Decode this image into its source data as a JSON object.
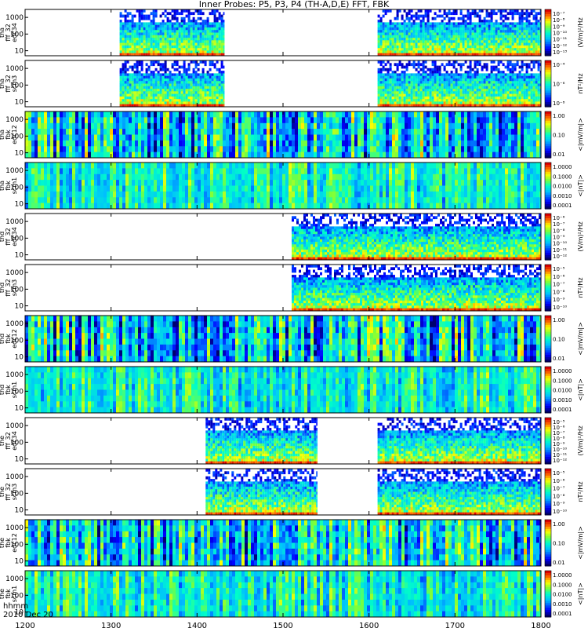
{
  "title": "Inner Probes: P5, P3, P4 (TH-A,D,E) FFT, FBK",
  "footer": {
    "time_label": "hhmm",
    "date_label": "2010 Dec 20"
  },
  "xaxis": {
    "ticks": [
      "1200",
      "1300",
      "1400",
      "1500",
      "1600",
      "1700",
      "1800"
    ],
    "range": [
      1200,
      1800
    ]
  },
  "chart_data": [
    {
      "type": "heatmap",
      "ylabel": [
        "tha",
        "fff_32",
        "edc34"
      ],
      "yticks": [
        "10",
        "100",
        "1000"
      ],
      "yscale": "log",
      "colorbar_label": "(V/m)²/Hz",
      "colorbar_ticks": [
        "10⁻⁷",
        "10⁻⁸",
        "10⁻⁹",
        "10⁻¹⁰",
        "10⁻¹¹",
        "10⁻¹²",
        "10⁻¹³"
      ],
      "data_intervals": [
        [
          1310,
          1432
        ],
        [
          1610,
          1800
        ]
      ],
      "palette": "wave"
    },
    {
      "type": "heatmap",
      "ylabel": [
        "tha",
        "fff_32",
        "scm3"
      ],
      "yticks": [
        "10",
        "100",
        "1000"
      ],
      "yscale": "log",
      "colorbar_label": "nT²/Hz",
      "colorbar_ticks": [
        "10⁻⁴",
        "10⁻⁶",
        "10⁻⁸"
      ],
      "data_intervals": [
        [
          1310,
          1432
        ],
        [
          1610,
          1800
        ]
      ],
      "palette": "wave"
    },
    {
      "type": "heatmap",
      "ylabel": [
        "tha",
        "fbk",
        "edc12"
      ],
      "yticks": [
        "10",
        "100",
        "1000"
      ],
      "yscale": "log",
      "colorbar_label": "<|mV/m|>",
      "colorbar_ticks": [
        "1.00",
        "0.10",
        "0.01"
      ],
      "data_intervals": [
        [
          1200,
          1800
        ]
      ],
      "palette": "fbk"
    },
    {
      "type": "heatmap",
      "ylabel": [
        "tha",
        "fbk",
        "scm1"
      ],
      "yticks": [
        "10",
        "100",
        "1000"
      ],
      "yscale": "log",
      "colorbar_label": "<|nT|>",
      "colorbar_ticks": [
        "1.0000",
        "0.1000",
        "0.0100",
        "0.0010",
        "0.0001"
      ],
      "data_intervals": [
        [
          1200,
          1800
        ]
      ],
      "palette": "scm"
    },
    {
      "type": "heatmap",
      "ylabel": [
        "thd",
        "fff_32",
        "edc34"
      ],
      "yticks": [
        "10",
        "100",
        "1000"
      ],
      "yscale": "log",
      "colorbar_label": "(V/m)²/Hz",
      "colorbar_ticks": [
        "10⁻⁶",
        "10⁻⁷",
        "10⁻⁸",
        "10⁻⁹",
        "10⁻¹⁰",
        "10⁻¹¹",
        "10⁻¹²"
      ],
      "data_intervals": [
        [
          1510,
          1800
        ]
      ],
      "palette": "wave"
    },
    {
      "type": "heatmap",
      "ylabel": [
        "thd",
        "fff_32",
        "scm3"
      ],
      "yticks": [
        "10",
        "100",
        "1000"
      ],
      "yscale": "log",
      "colorbar_label": "nT²/Hz",
      "colorbar_ticks": [
        "10⁻⁵",
        "10⁻⁶",
        "10⁻⁷",
        "10⁻⁸",
        "10⁻⁹",
        "10⁻¹⁰"
      ],
      "data_intervals": [
        [
          1510,
          1800
        ]
      ],
      "palette": "wave"
    },
    {
      "type": "heatmap",
      "ylabel": [
        "thd",
        "fbk",
        "edc12"
      ],
      "yticks": [
        "10",
        "100",
        "1000"
      ],
      "yscale": "log",
      "colorbar_label": "<|mV/m|>",
      "colorbar_ticks": [
        "1.00",
        "0.10",
        "0.01"
      ],
      "data_intervals": [
        [
          1200,
          1800
        ]
      ],
      "palette": "fbk"
    },
    {
      "type": "heatmap",
      "ylabel": [
        "thd",
        "fbk",
        "scm1"
      ],
      "yticks": [
        "10",
        "100",
        "1000"
      ],
      "yscale": "log",
      "colorbar_label": "<|nT|>",
      "colorbar_ticks": [
        "1.0000",
        "0.1000",
        "0.0100",
        "0.0010",
        "0.0001"
      ],
      "data_intervals": [
        [
          1200,
          1800
        ]
      ],
      "palette": "scm"
    },
    {
      "type": "heatmap",
      "ylabel": [
        "the",
        "fff_32",
        "edc34"
      ],
      "yticks": [
        "10",
        "100",
        "1000"
      ],
      "yscale": "log",
      "colorbar_label": "(V/m)²/Hz",
      "colorbar_ticks": [
        "10⁻⁵",
        "10⁻⁶",
        "10⁻⁷",
        "10⁻⁸",
        "10⁻⁹",
        "10⁻¹⁰",
        "10⁻¹¹",
        "10⁻¹²"
      ],
      "data_intervals": [
        [
          1410,
          1540
        ],
        [
          1610,
          1800
        ]
      ],
      "palette": "wave"
    },
    {
      "type": "heatmap",
      "ylabel": [
        "the",
        "fff_32",
        "scm3"
      ],
      "yticks": [
        "10",
        "100",
        "1000"
      ],
      "yscale": "log",
      "colorbar_label": "nT²/Hz",
      "colorbar_ticks": [
        "10⁻⁵",
        "10⁻⁶",
        "10⁻⁷",
        "10⁻⁸",
        "10⁻⁹",
        "10⁻¹⁰"
      ],
      "data_intervals": [
        [
          1410,
          1540
        ],
        [
          1610,
          1800
        ]
      ],
      "palette": "wave"
    },
    {
      "type": "heatmap",
      "ylabel": [
        "the",
        "fbk",
        "edc12"
      ],
      "yticks": [
        "10",
        "100",
        "1000"
      ],
      "yscale": "log",
      "colorbar_label": "<|mV/m|>",
      "colorbar_ticks": [
        "1.00",
        "0.10",
        "0.01"
      ],
      "data_intervals": [
        [
          1200,
          1800
        ]
      ],
      "palette": "fbk"
    },
    {
      "type": "heatmap",
      "ylabel": [
        "the",
        "fbk",
        "scm1"
      ],
      "yticks": [
        "10",
        "100",
        "1000"
      ],
      "yscale": "log",
      "colorbar_label": "<|nT|>",
      "colorbar_ticks": [
        "1.0000",
        "0.1000",
        "0.0100",
        "0.0010",
        "0.0001"
      ],
      "data_intervals": [
        [
          1200,
          1800
        ]
      ],
      "palette": "scm"
    }
  ]
}
